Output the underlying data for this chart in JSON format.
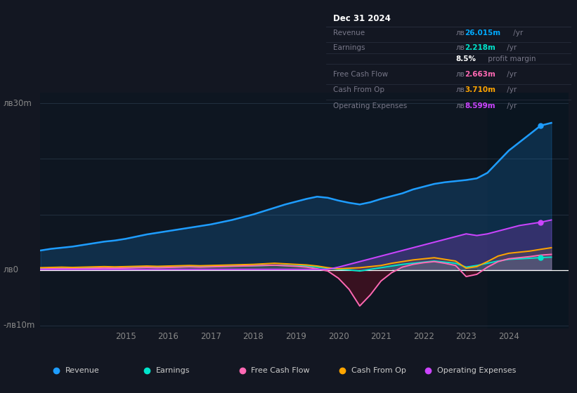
{
  "bg_color": "#131722",
  "plot_bg_color": "#0e1621",
  "title": "Dec 31 2024",
  "ylabel_30": "лв30m",
  "ylabel_0": "лв0",
  "ylabel_neg10": "-лв10m",
  "currency": "лв",
  "info_box": {
    "title": "Dec 31 2024",
    "rows": [
      {
        "label": "Revenue",
        "value_prefix": "лв",
        "value_num": "26.015m",
        "value_suffix": " /yr",
        "value_color": "#00aaff"
      },
      {
        "label": "Earnings",
        "value_prefix": "лв",
        "value_num": "2.218m",
        "value_suffix": " /yr",
        "value_color": "#00e5cc"
      },
      {
        "label": "",
        "value_prefix": "",
        "value_num": "8.5%",
        "value_suffix": " profit margin",
        "value_color": "#ffffff",
        "is_margin": true
      },
      {
        "label": "Free Cash Flow",
        "value_prefix": "лв",
        "value_num": "2.663m",
        "value_suffix": " /yr",
        "value_color": "#ff69b4"
      },
      {
        "label": "Cash From Op",
        "value_prefix": "лв",
        "value_num": "3.710m",
        "value_suffix": " /yr",
        "value_color": "#ffa500"
      },
      {
        "label": "Operating Expenses",
        "value_prefix": "лв",
        "value_num": "8.599m",
        "value_suffix": " /yr",
        "value_color": "#cc44ff"
      }
    ]
  },
  "legend": [
    {
      "label": "Revenue",
      "color": "#1e9dff"
    },
    {
      "label": "Earnings",
      "color": "#00e5cc"
    },
    {
      "label": "Free Cash Flow",
      "color": "#ff69b4"
    },
    {
      "label": "Cash From Op",
      "color": "#ffa500"
    },
    {
      "label": "Operating Expenses",
      "color": "#cc44ff"
    }
  ],
  "years_x": [
    2013.0,
    2013.25,
    2013.5,
    2013.75,
    2014.0,
    2014.25,
    2014.5,
    2014.75,
    2015.0,
    2015.25,
    2015.5,
    2015.75,
    2016.0,
    2016.25,
    2016.5,
    2016.75,
    2017.0,
    2017.25,
    2017.5,
    2017.75,
    2018.0,
    2018.25,
    2018.5,
    2018.75,
    2019.0,
    2019.25,
    2019.5,
    2019.75,
    2020.0,
    2020.25,
    2020.5,
    2020.75,
    2021.0,
    2021.25,
    2021.5,
    2021.75,
    2022.0,
    2022.25,
    2022.5,
    2022.75,
    2023.0,
    2023.25,
    2023.5,
    2023.75,
    2024.0,
    2024.25,
    2024.5,
    2024.75,
    2025.0
  ],
  "revenue": [
    3.5,
    3.8,
    4.0,
    4.2,
    4.5,
    4.8,
    5.1,
    5.3,
    5.6,
    6.0,
    6.4,
    6.7,
    7.0,
    7.3,
    7.6,
    7.9,
    8.2,
    8.6,
    9.0,
    9.5,
    10.0,
    10.6,
    11.2,
    11.8,
    12.3,
    12.8,
    13.2,
    13.0,
    12.5,
    12.1,
    11.8,
    12.2,
    12.8,
    13.3,
    13.8,
    14.5,
    15.0,
    15.5,
    15.8,
    16.0,
    16.2,
    16.5,
    17.5,
    19.5,
    21.5,
    23.0,
    24.5,
    26.015,
    26.5
  ],
  "earnings": [
    0.2,
    0.25,
    0.3,
    0.28,
    0.3,
    0.35,
    0.38,
    0.35,
    0.4,
    0.45,
    0.5,
    0.48,
    0.5,
    0.55,
    0.6,
    0.58,
    0.6,
    0.65,
    0.7,
    0.72,
    0.75,
    0.8,
    0.85,
    0.8,
    0.75,
    0.7,
    0.5,
    0.3,
    0.1,
    0.0,
    -0.2,
    0.1,
    0.4,
    0.7,
    1.0,
    1.2,
    1.4,
    1.6,
    1.4,
    1.2,
    0.5,
    0.8,
    1.2,
    1.6,
    1.9,
    2.0,
    2.1,
    2.218,
    2.3
  ],
  "free_cash_flow": [
    0.15,
    0.2,
    0.25,
    0.2,
    0.25,
    0.3,
    0.35,
    0.3,
    0.35,
    0.4,
    0.45,
    0.4,
    0.45,
    0.5,
    0.55,
    0.5,
    0.55,
    0.6,
    0.65,
    0.7,
    0.75,
    0.8,
    0.85,
    0.75,
    0.65,
    0.5,
    0.2,
    -0.2,
    -1.5,
    -3.5,
    -6.5,
    -4.5,
    -2.0,
    -0.5,
    0.5,
    1.0,
    1.3,
    1.5,
    1.2,
    0.8,
    -1.2,
    -0.8,
    0.5,
    1.5,
    2.0,
    2.2,
    2.4,
    2.663,
    2.8
  ],
  "cash_from_op": [
    0.4,
    0.45,
    0.5,
    0.45,
    0.5,
    0.55,
    0.6,
    0.55,
    0.6,
    0.65,
    0.7,
    0.65,
    0.7,
    0.75,
    0.8,
    0.75,
    0.8,
    0.85,
    0.9,
    0.95,
    1.0,
    1.1,
    1.2,
    1.1,
    1.0,
    0.9,
    0.7,
    0.4,
    0.2,
    0.3,
    0.4,
    0.6,
    0.8,
    1.2,
    1.5,
    1.8,
    2.0,
    2.2,
    1.9,
    1.6,
    0.3,
    0.6,
    1.5,
    2.5,
    3.0,
    3.2,
    3.4,
    3.71,
    4.0
  ],
  "operating_expenses": [
    0.1,
    0.1,
    0.1,
    0.1,
    0.1,
    0.1,
    0.1,
    0.1,
    0.1,
    0.1,
    0.1,
    0.1,
    0.1,
    0.1,
    0.1,
    0.1,
    0.1,
    0.1,
    0.1,
    0.1,
    0.1,
    0.1,
    0.1,
    0.1,
    0.1,
    0.1,
    0.1,
    0.1,
    0.5,
    1.0,
    1.5,
    2.0,
    2.5,
    3.0,
    3.5,
    4.0,
    4.5,
    5.0,
    5.5,
    6.0,
    6.5,
    6.2,
    6.5,
    7.0,
    7.5,
    8.0,
    8.3,
    8.599,
    9.0
  ],
  "xlim": [
    2013.0,
    2025.4
  ],
  "ylim": [
    -10.5,
    32
  ],
  "xticks": [
    2015,
    2016,
    2017,
    2018,
    2019,
    2020,
    2021,
    2022,
    2023,
    2024
  ],
  "highlight_x_start": 2023.5,
  "highlight_x_end": 2025.4,
  "revenue_color": "#1e9dff",
  "earnings_color": "#00e5cc",
  "fcf_color": "#ff69b4",
  "cop_color": "#ffa500",
  "opex_color": "#cc44ff",
  "revenue_fill_color": "#1a3a5c",
  "fcf_neg_fill_color": "#4a1020",
  "opex_fill_color": "#3a1a5c"
}
